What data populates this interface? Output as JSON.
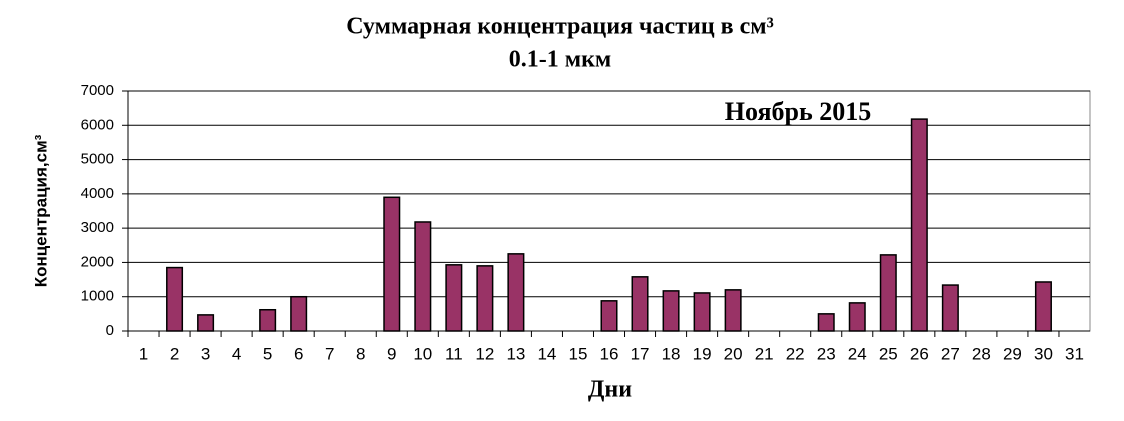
{
  "chart_data": {
    "type": "bar",
    "title": "Суммарная концентрация частиц  в см³",
    "subtitle": "0.1-1 мкм",
    "annotation": "Ноябрь 2015",
    "x_label": "Дни",
    "y_label": "Концентрация,см³",
    "categories": [
      "1",
      "2",
      "3",
      "4",
      "5",
      "6",
      "7",
      "8",
      "9",
      "10",
      "11",
      "12",
      "13",
      "14",
      "15",
      "16",
      "17",
      "18",
      "19",
      "20",
      "21",
      "22",
      "23",
      "24",
      "25",
      "26",
      "27",
      "28",
      "29",
      "30",
      "31"
    ],
    "values": [
      null,
      1850,
      470,
      null,
      620,
      1000,
      null,
      null,
      3900,
      3180,
      1930,
      1900,
      2250,
      null,
      null,
      880,
      1580,
      1170,
      1110,
      1200,
      null,
      null,
      500,
      820,
      2220,
      6180,
      1340,
      null,
      null,
      1430,
      null
    ],
    "color": "#993366",
    "ylim": [
      0,
      7000
    ],
    "yticks": [
      0,
      1000,
      2000,
      3000,
      4000,
      5000,
      6000,
      7000
    ],
    "grid": true
  }
}
